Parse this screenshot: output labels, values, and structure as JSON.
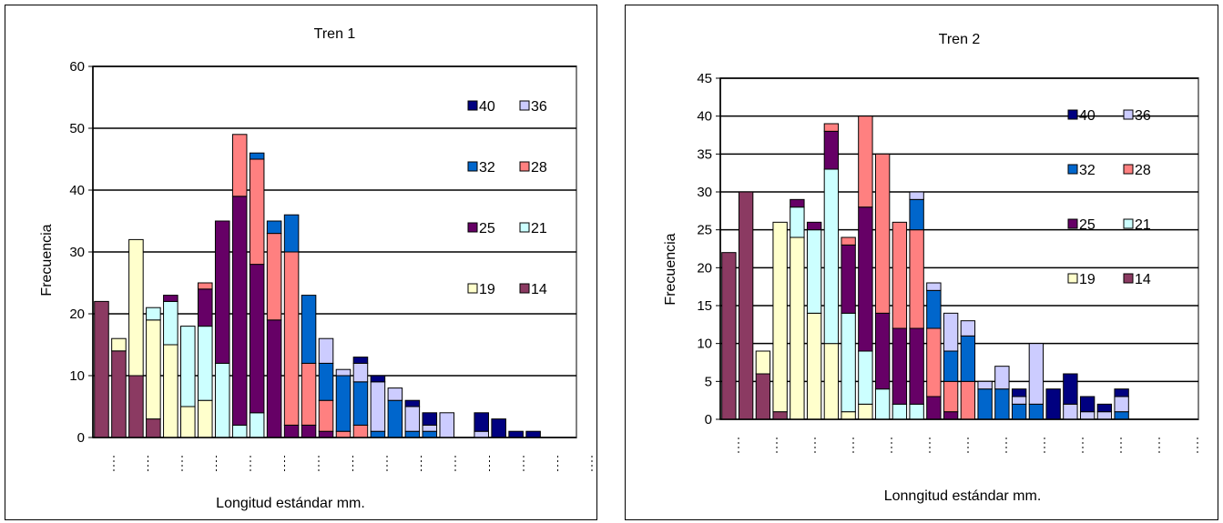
{
  "chart_data": [
    {
      "type": "bar",
      "stacked": true,
      "title": "Tren 1",
      "xlabel": "Longitud estándar mm.",
      "ylabel": "Frecuencia",
      "ylim": [
        0,
        60
      ],
      "yticks": [
        0,
        10,
        20,
        30,
        40,
        50,
        60
      ],
      "xtick_labels": [
        "",
        "",
        "",
        "",
        "",
        "",
        "",
        "",
        "",
        "",
        "",
        "",
        "",
        "",
        ""
      ],
      "categories": 28,
      "legend": [
        "40",
        "36",
        "32",
        "28",
        "25",
        "21",
        "19",
        "14"
      ],
      "legend_position": "right",
      "gridlines": true,
      "series": [
        {
          "name": "14",
          "color": "#8b3a62",
          "values": [
            22,
            14,
            10,
            3,
            0,
            0,
            0,
            0,
            0,
            0,
            0,
            0,
            0,
            0,
            0,
            0,
            0,
            0,
            0,
            0,
            0,
            0,
            0,
            0,
            0,
            0,
            0,
            0
          ]
        },
        {
          "name": "19",
          "color": "#ffffcc",
          "values": [
            0,
            2,
            22,
            16,
            15,
            5,
            6,
            0,
            0,
            0,
            0,
            0,
            0,
            0,
            0,
            0,
            0,
            0,
            0,
            0,
            0,
            0,
            0,
            0,
            0,
            0,
            0,
            0
          ]
        },
        {
          "name": "21",
          "color": "#ccffff",
          "values": [
            0,
            0,
            0,
            2,
            7,
            13,
            12,
            12,
            2,
            4,
            0,
            0,
            0,
            0,
            0,
            0,
            0,
            0,
            0,
            0,
            0,
            0,
            0,
            0,
            0,
            0,
            0,
            0
          ]
        },
        {
          "name": "25",
          "color": "#660066",
          "values": [
            0,
            0,
            0,
            0,
            1,
            0,
            6,
            23,
            37,
            24,
            19,
            2,
            2,
            1,
            0,
            0,
            0,
            0,
            0,
            0,
            0,
            0,
            0,
            0,
            0,
            0,
            0,
            0
          ]
        },
        {
          "name": "28",
          "color": "#ff8080",
          "values": [
            0,
            0,
            0,
            0,
            0,
            0,
            1,
            0,
            10,
            17,
            14,
            28,
            10,
            5,
            1,
            2,
            0,
            0,
            0,
            0,
            0,
            0,
            0,
            0,
            0,
            0,
            0,
            0
          ]
        },
        {
          "name": "32",
          "color": "#0066cc",
          "values": [
            0,
            0,
            0,
            0,
            0,
            0,
            0,
            0,
            0,
            1,
            2,
            6,
            11,
            6,
            9,
            7,
            1,
            6,
            1,
            1,
            0,
            0,
            0,
            0,
            0,
            0,
            0,
            0
          ]
        },
        {
          "name": "36",
          "color": "#ccccff",
          "values": [
            0,
            0,
            0,
            0,
            0,
            0,
            0,
            0,
            0,
            0,
            0,
            0,
            0,
            4,
            1,
            3,
            8,
            2,
            4,
            1,
            4,
            0,
            1,
            0,
            0,
            0,
            0,
            0
          ]
        },
        {
          "name": "40",
          "color": "#000080",
          "values": [
            0,
            0,
            0,
            0,
            0,
            0,
            0,
            0,
            0,
            0,
            0,
            0,
            0,
            0,
            0,
            1,
            1,
            0,
            1,
            2,
            0,
            0,
            3,
            3,
            1,
            1,
            0,
            0
          ]
        }
      ]
    },
    {
      "type": "bar",
      "stacked": true,
      "title": "Tren 2",
      "xlabel": "Lonngitud estándar mm.",
      "ylabel": "Frecuencia",
      "ylim": [
        0,
        45
      ],
      "yticks": [
        0,
        5,
        10,
        15,
        20,
        25,
        30,
        35,
        40,
        45
      ],
      "xtick_labels": [
        "",
        "",
        "",
        "",
        "",
        "",
        "",
        "",
        "",
        "",
        "",
        "",
        ""
      ],
      "categories": 28,
      "legend": [
        "40",
        "36",
        "32",
        "28",
        "25",
        "21",
        "19",
        "14"
      ],
      "legend_position": "right",
      "gridlines": true,
      "series": [
        {
          "name": "14",
          "color": "#8b3a62",
          "values": [
            22,
            30,
            6,
            1,
            0,
            0,
            0,
            0,
            0,
            0,
            0,
            0,
            0,
            0,
            0,
            0,
            0,
            0,
            0,
            0,
            0,
            0,
            0,
            0,
            0,
            0,
            0,
            0
          ]
        },
        {
          "name": "19",
          "color": "#ffffcc",
          "values": [
            0,
            0,
            3,
            25,
            24,
            14,
            10,
            1,
            2,
            0,
            0,
            0,
            0,
            0,
            0,
            0,
            0,
            0,
            0,
            0,
            0,
            0,
            0,
            0,
            0,
            0,
            0,
            0
          ]
        },
        {
          "name": "21",
          "color": "#ccffff",
          "values": [
            0,
            0,
            0,
            0,
            4,
            11,
            23,
            13,
            7,
            4,
            2,
            2,
            0,
            0,
            0,
            0,
            0,
            0,
            0,
            0,
            0,
            0,
            0,
            0,
            0,
            0,
            0,
            0
          ]
        },
        {
          "name": "25",
          "color": "#660066",
          "values": [
            0,
            0,
            0,
            0,
            1,
            1,
            5,
            9,
            19,
            10,
            10,
            10,
            3,
            1,
            0,
            0,
            0,
            0,
            0,
            0,
            0,
            0,
            0,
            0,
            0,
            0,
            0,
            0
          ]
        },
        {
          "name": "28",
          "color": "#ff8080",
          "values": [
            0,
            0,
            0,
            0,
            0,
            0,
            1,
            1,
            12,
            21,
            14,
            13,
            9,
            4,
            5,
            0,
            0,
            0,
            0,
            0,
            0,
            0,
            0,
            0,
            0,
            0,
            0,
            0
          ]
        },
        {
          "name": "32",
          "color": "#0066cc",
          "values": [
            0,
            0,
            0,
            0,
            0,
            0,
            0,
            0,
            0,
            0,
            0,
            4,
            5,
            4,
            6,
            4,
            4,
            2,
            2,
            0,
            0,
            0,
            0,
            1,
            0,
            0,
            0,
            0
          ]
        },
        {
          "name": "36",
          "color": "#ccccff",
          "values": [
            0,
            0,
            0,
            0,
            0,
            0,
            0,
            0,
            0,
            0,
            0,
            1,
            1,
            5,
            2,
            1,
            3,
            1,
            8,
            0,
            2,
            1,
            1,
            2,
            0,
            0,
            0,
            0
          ]
        },
        {
          "name": "40",
          "color": "#000080",
          "values": [
            0,
            0,
            0,
            0,
            0,
            0,
            0,
            0,
            0,
            0,
            0,
            0,
            0,
            0,
            0,
            0,
            0,
            1,
            0,
            4,
            4,
            2,
            1,
            1,
            0,
            0,
            0,
            0
          ]
        }
      ]
    }
  ]
}
